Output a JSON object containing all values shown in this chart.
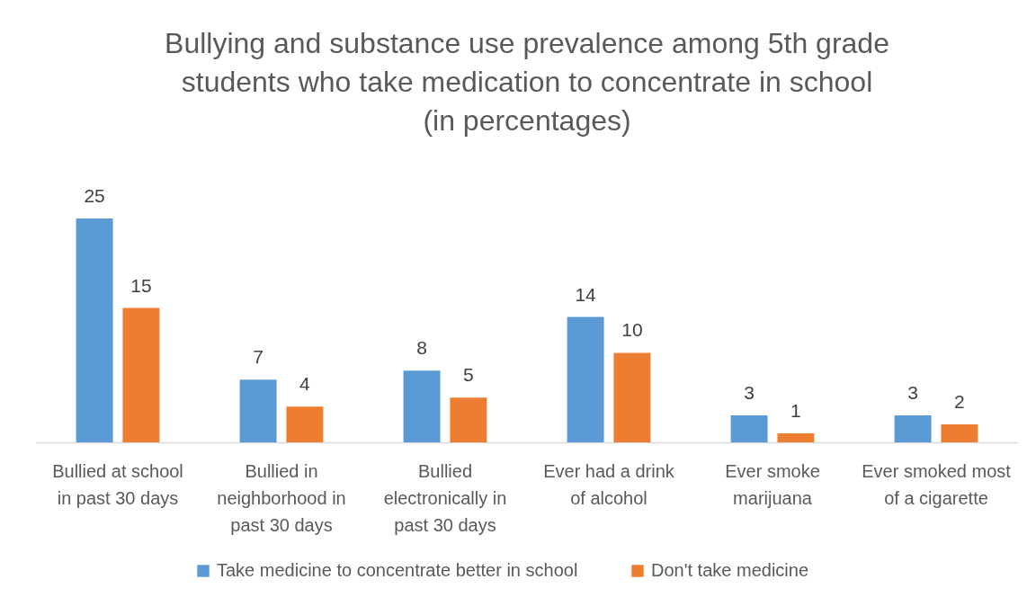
{
  "chart_data": {
    "type": "bar",
    "title": "Bullying and substance use prevalence among 5th grade students who take medication to concentrate in school (in percentages)",
    "categories": [
      "Bullied at school in past 30 days",
      "Bullied in neighborhood in past 30 days",
      "Bullied electronically in past 30 days",
      "Ever had a drink of alcohol",
      "Ever smoke marijuana",
      "Ever smoked most of a cigarette"
    ],
    "series": [
      {
        "name": "Take medicine to concentrate better in school",
        "color": "#5b9bd5",
        "values": [
          25,
          7,
          8,
          14,
          3,
          3
        ]
      },
      {
        "name": "Don't take medicine",
        "color": "#ed7d31",
        "values": [
          15,
          4,
          5,
          10,
          1,
          2
        ]
      }
    ],
    "data_labels": true,
    "legend": "bottom"
  }
}
